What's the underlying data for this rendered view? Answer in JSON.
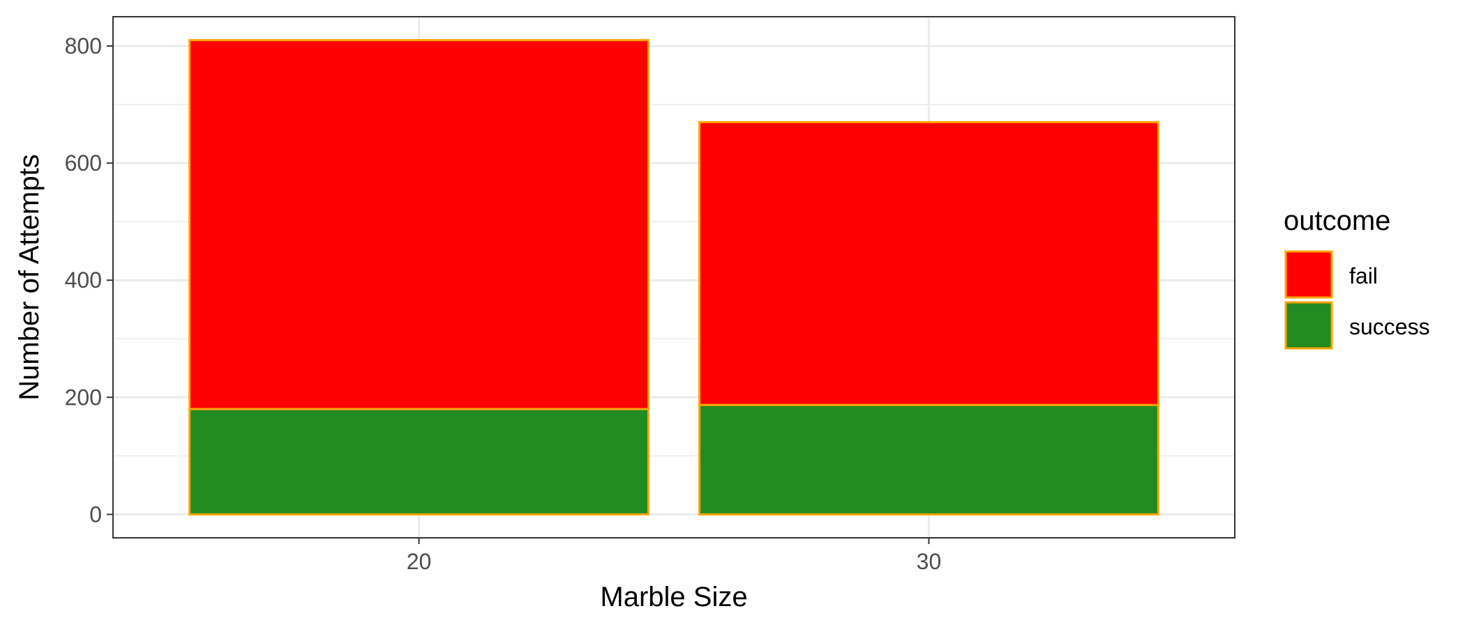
{
  "chart_data": {
    "type": "bar",
    "stacked": true,
    "categories": [
      "20",
      "30"
    ],
    "series": [
      {
        "name": "success",
        "values": [
          180,
          187
        ],
        "color": "#228B22"
      },
      {
        "name": "fail",
        "values": [
          630,
          483
        ],
        "color": "#FF0000"
      }
    ],
    "bar_outline_color": "#FFA500",
    "xlabel": "Marble Size",
    "ylabel": "Number of Attempts",
    "ylim": [
      -40,
      850
    ],
    "yticks": [
      0,
      200,
      400,
      600,
      800
    ],
    "yticks_labels": [
      "0",
      "200",
      "400",
      "600",
      "800"
    ],
    "grid": true,
    "legend": {
      "title": "outcome",
      "placement": "right",
      "items": [
        "fail",
        "success"
      ]
    }
  }
}
